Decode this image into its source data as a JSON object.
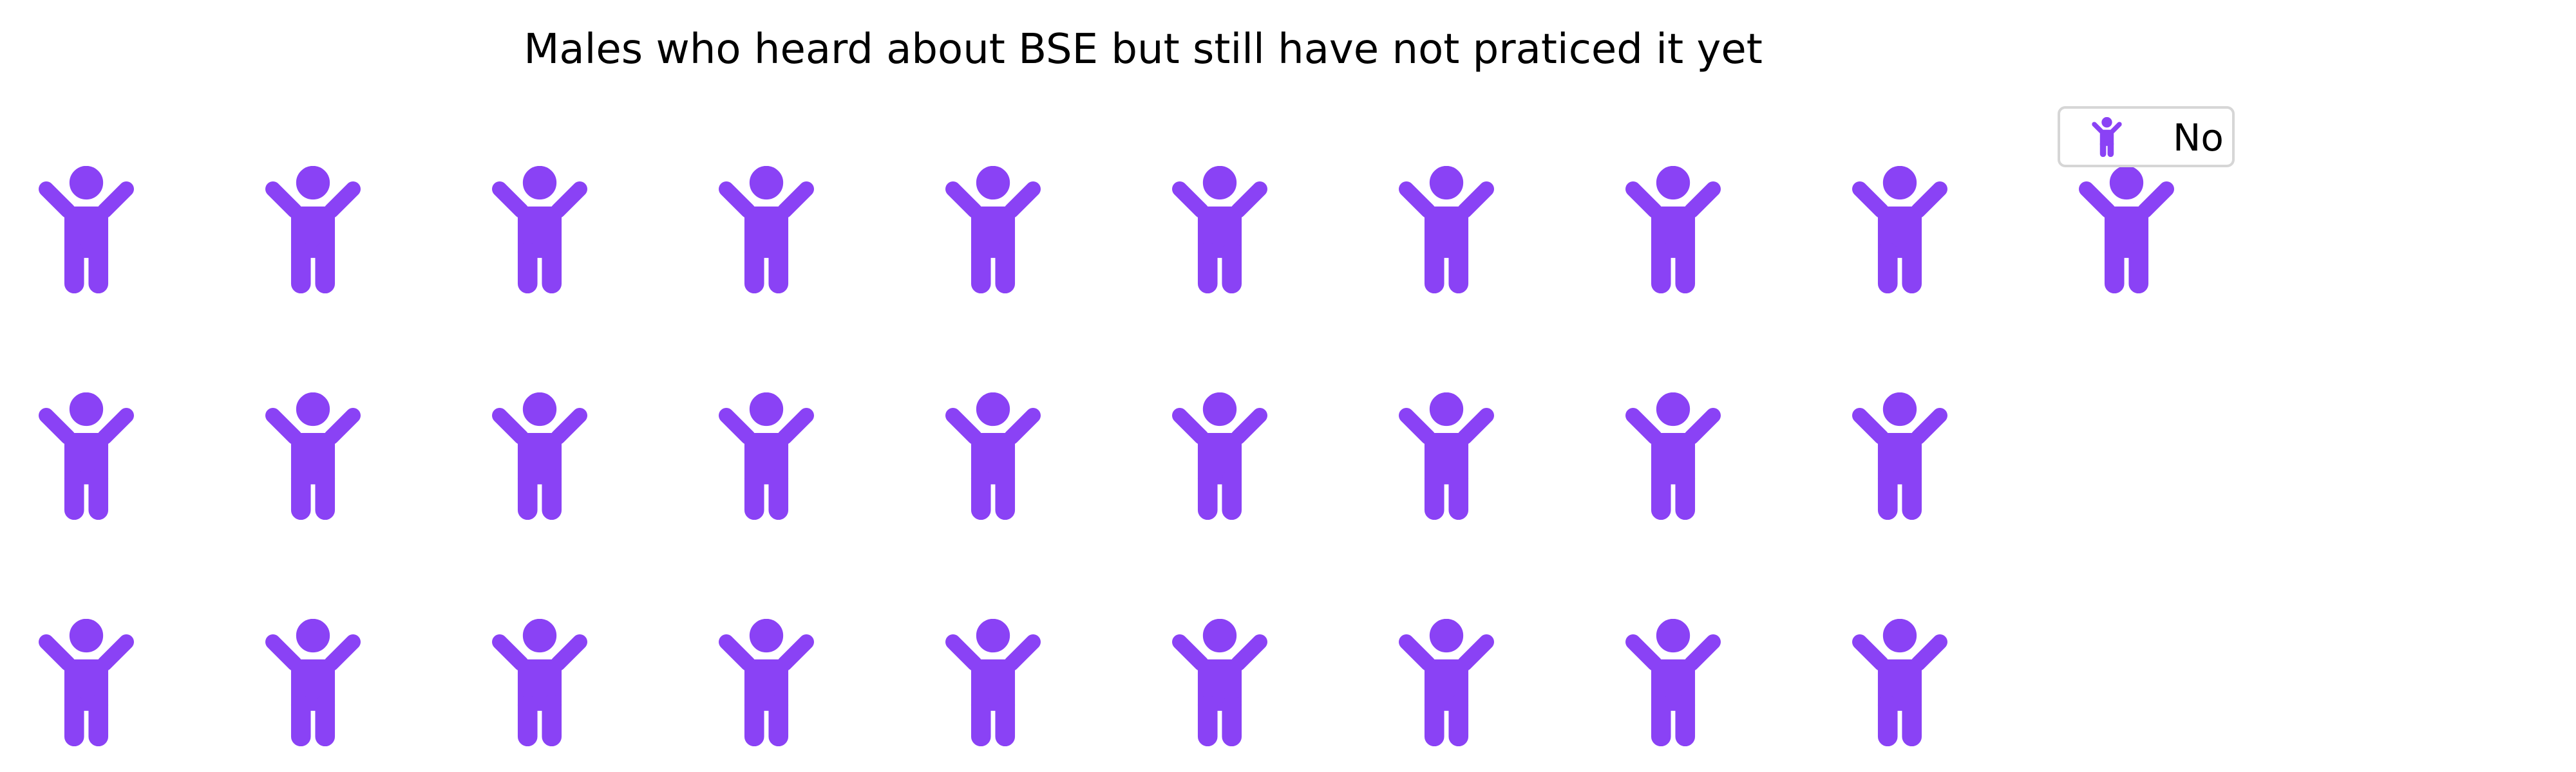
{
  "chart_data": {
    "type": "waffle",
    "title": "Males who heard about BSE but still have not praticed it yet",
    "icon": "person-arms-raised-icon",
    "rows": 3,
    "columns": 10,
    "fill_order": "column-major, top row first",
    "series": [
      {
        "name": "No",
        "count": 28,
        "color": "#8a42f5"
      }
    ],
    "legend": {
      "position": "top-right",
      "entries": [
        "No"
      ]
    }
  }
}
